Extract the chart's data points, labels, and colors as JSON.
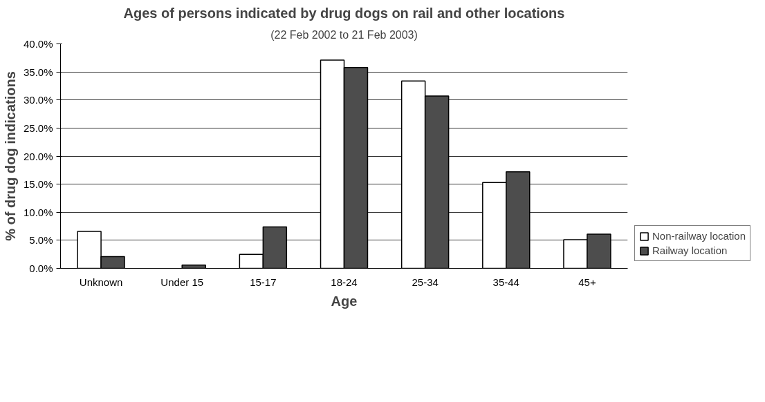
{
  "chart_data": {
    "type": "bar",
    "title": "Ages of persons indicated by drug dogs on rail and other locations",
    "subtitle": "(22 Feb 2002 to 21 Feb 2003)",
    "xlabel": "Age",
    "ylabel": "% of drug dog indications",
    "categories": [
      "Unknown",
      "Under 15",
      "15-17",
      "18-24",
      "25-34",
      "35-44",
      "45+"
    ],
    "series": [
      {
        "name": "Non-railway location",
        "color": "#ffffff",
        "values": [
          6.6,
          0,
          2.5,
          37.1,
          33.4,
          15.3,
          5.1
        ]
      },
      {
        "name": "Railway location",
        "color": "#4d4d4d",
        "values": [
          2.1,
          0.6,
          7.4,
          35.8,
          30.7,
          17.2,
          6.1
        ]
      }
    ],
    "ylim": [
      0,
      40
    ],
    "yticks": [
      {
        "value": 0,
        "label": "0.0%"
      },
      {
        "value": 5,
        "label": "5.0%"
      },
      {
        "value": 10,
        "label": "10.0%"
      },
      {
        "value": 15,
        "label": "15.0%"
      },
      {
        "value": 20,
        "label": "20.0%"
      },
      {
        "value": 25,
        "label": "25.0%"
      },
      {
        "value": 30,
        "label": "30.0%"
      },
      {
        "value": 35,
        "label": "35.0%"
      },
      {
        "value": 40,
        "label": "40.0%"
      }
    ],
    "grid": "y",
    "legend": "bottom right"
  }
}
